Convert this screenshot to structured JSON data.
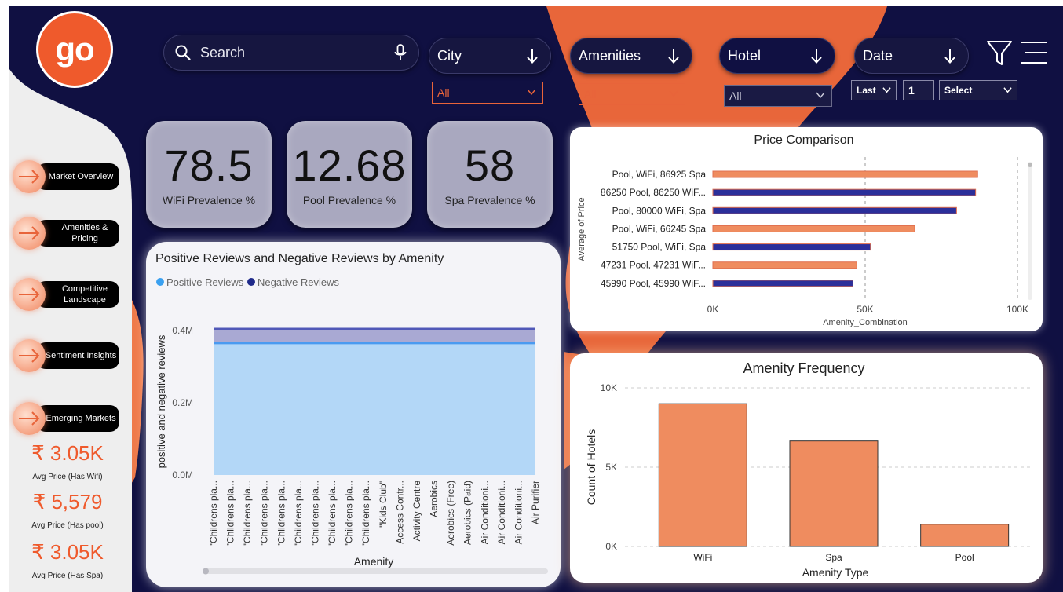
{
  "app": {
    "logo_text": "go"
  },
  "search": {
    "placeholder": "Search"
  },
  "slicers": {
    "city": {
      "label": "City",
      "value": "All"
    },
    "amenities": {
      "label": "Amenities",
      "value": "All"
    },
    "hotel": {
      "label": "Hotel",
      "value": "All"
    },
    "date": {
      "label": "Date",
      "mode": "Last",
      "count": "1",
      "unit": "Select"
    }
  },
  "kpis": [
    {
      "value": "78.5",
      "label": "WiFi Prevalence %"
    },
    {
      "value": "12.68",
      "label": "Pool Prevalence %"
    },
    {
      "value": "58",
      "label": "Spa Prevalence %"
    }
  ],
  "nav": [
    {
      "label": "Market Overview"
    },
    {
      "label": "Amenities & Pricing"
    },
    {
      "label": "Competitive Landscape"
    },
    {
      "label": "Sentiment Insights"
    },
    {
      "label": "Emerging Markets"
    }
  ],
  "prices": [
    {
      "value": "₹ 3.05K",
      "label": "Avg Price (Has Wifi)"
    },
    {
      "value": "₹ 5,579",
      "label": "Avg Price (Has pool)"
    },
    {
      "value": "₹ 3.05K",
      "label": "Avg Price (Has Spa)"
    }
  ],
  "colors": {
    "background": "#101042",
    "accent": "#ef5a2c",
    "orange_bar": "#ef8c5f",
    "navy_bar": "#2b2f9a",
    "positive": "#b3d7f7",
    "negative": "#a9a9d3"
  },
  "chart_data": [
    {
      "type": "area",
      "title": "Positive Reviews and Negative Reviews by Amenity",
      "xlabel": "Amenity",
      "ylabel": "positive and negative reviews",
      "y_ticks": [
        "0.0M",
        "0.2M",
        "0.4M"
      ],
      "ylim": [
        0,
        450000
      ],
      "legend_placement": "top-left",
      "categories": [
        "\"Childrens pla...",
        "\"Childrens pla...",
        "\"Childrens pla...",
        "\"Childrens pla...",
        "\"Childrens pla...",
        "\"Childrens pla...",
        "\"Childrens pla...",
        "\"Childrens pla...",
        "\"Childrens pla...",
        "\"Childrens pla...",
        "\"Kids Club\"",
        "Access Contr...",
        "Activity Centre",
        "Aerobics",
        "Aerobics (Free)",
        "Aerobics (Paid)",
        "Air Conditioni...",
        "Air Conditioni...",
        "Air Conditioni...",
        "Air Purifier"
      ],
      "series": [
        {
          "name": "Positive Reviews",
          "values": [
            365000,
            365000,
            365000,
            365000,
            365000,
            365000,
            365000,
            365000,
            365000,
            365000,
            365000,
            365000,
            365000,
            365000,
            365000,
            365000,
            365000,
            365000,
            365000,
            365000
          ]
        },
        {
          "name": "Negative Reviews",
          "values": [
            40000,
            40000,
            40000,
            40000,
            40000,
            40000,
            40000,
            40000,
            40000,
            40000,
            40000,
            40000,
            40000,
            40000,
            40000,
            40000,
            40000,
            40000,
            40000,
            40000
          ]
        }
      ]
    },
    {
      "type": "bar",
      "orientation": "horizontal",
      "title": "Price Comparison",
      "xlabel": "Amenity_Combination",
      "ylabel": "Average of Price",
      "x_ticks": [
        "0K",
        "50K",
        "100K"
      ],
      "xlim": [
        0,
        100000
      ],
      "categories": [
        "Pool, WiFi, 86925 Spa",
        "86250 Pool, 86250 WiF...",
        "Pool, 80000 WiFi, Spa",
        "Pool, WiFi, 66245 Spa",
        "51750 Pool, WiFi, Spa",
        "47231 Pool, 47231 WiF...",
        "45990 Pool, 45990 WiF..."
      ],
      "values": [
        86925,
        86250,
        80000,
        66245,
        51750,
        47231,
        45990
      ],
      "bar_colors": [
        "orange",
        "navy",
        "navy",
        "orange",
        "navy",
        "orange",
        "navy"
      ]
    },
    {
      "type": "bar",
      "title": "Amenity Frequency",
      "xlabel": "Amenity Type",
      "ylabel": "Count of Hotels",
      "y_ticks": [
        "0K",
        "5K",
        "10K"
      ],
      "ylim": [
        0,
        10000
      ],
      "categories": [
        "WiFi",
        "Spa",
        "Pool"
      ],
      "values": [
        9000,
        6650,
        1400
      ]
    }
  ]
}
